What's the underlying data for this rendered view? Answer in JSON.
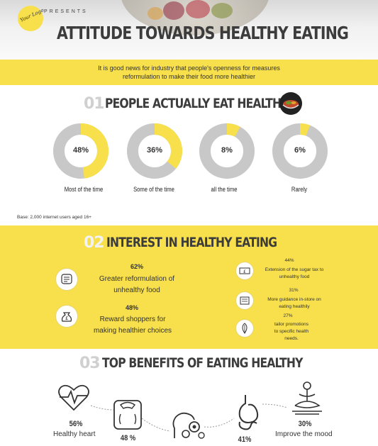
{
  "header": {
    "logo_text": "Your Logo",
    "presents": "PRESENTS",
    "title": "ATTITUDE TOWARDS HEALTHY EATING"
  },
  "intro": {
    "line1": "It is good news for industry that people's openness for measures",
    "line2": "reformulation to make their food more healthier"
  },
  "section1": {
    "number": "01",
    "title": "PEOPLE ACTUALLY EAT HEALTHY",
    "icon": "salad-bowl-icon",
    "donuts": [
      {
        "value": "48%",
        "fraction": 0.48,
        "label": "Most of the time"
      },
      {
        "value": "36%",
        "fraction": 0.36,
        "label": "Some of the time"
      },
      {
        "value": "8%",
        "fraction": 0.08,
        "label": "all the time"
      },
      {
        "value": "6%",
        "fraction": 0.06,
        "label": "Rarely"
      }
    ],
    "base_note": "Base: 2,000 internet users aged 16+"
  },
  "section2": {
    "number": "02",
    "title": "INTEREST IN HEALTHY EATING",
    "left": [
      {
        "percent": "62%",
        "line1": "Greater reformulation of",
        "line2": "unhealthy food",
        "icon": "document-lines-icon"
      },
      {
        "percent": "48%",
        "line1": "Reward shoppers for",
        "line2": "making healthier choices",
        "icon": "money-bag-icon"
      }
    ],
    "right": [
      {
        "percent": "44%",
        "line1": "Extension of the sugar tax to",
        "line2": "unhealthy food",
        "line3": "",
        "icon": "pound-note-icon"
      },
      {
        "percent": "31%",
        "line1": "More guidance in-store on",
        "line2": "eating healthily",
        "line3": "",
        "icon": "guidebook-icon"
      },
      {
        "percent": "27%",
        "line1": "tailor promotions",
        "line2": "to specific health",
        "line3": "needs.",
        "icon": "leaf-icon"
      }
    ]
  },
  "section3": {
    "number": "03",
    "title": "TOP BENEFITS OF EATING HEALTHY",
    "benefits": [
      {
        "percent": "56%",
        "label": "Healthy heart",
        "icon": "heartbeat-icon"
      },
      {
        "percent": "48 %",
        "label": "",
        "icon": "weighing-scale-icon"
      },
      {
        "percent": "",
        "label": "",
        "icon": "brain-gears-icon"
      },
      {
        "percent": "41%",
        "label": "",
        "icon": "stomach-icon"
      },
      {
        "percent": "30%",
        "label": "Improve the mood",
        "icon": "meditation-icon"
      }
    ]
  },
  "colors": {
    "accent": "#f7e04b",
    "grey": "#c8c8c8",
    "text": "#3c3c3c"
  }
}
